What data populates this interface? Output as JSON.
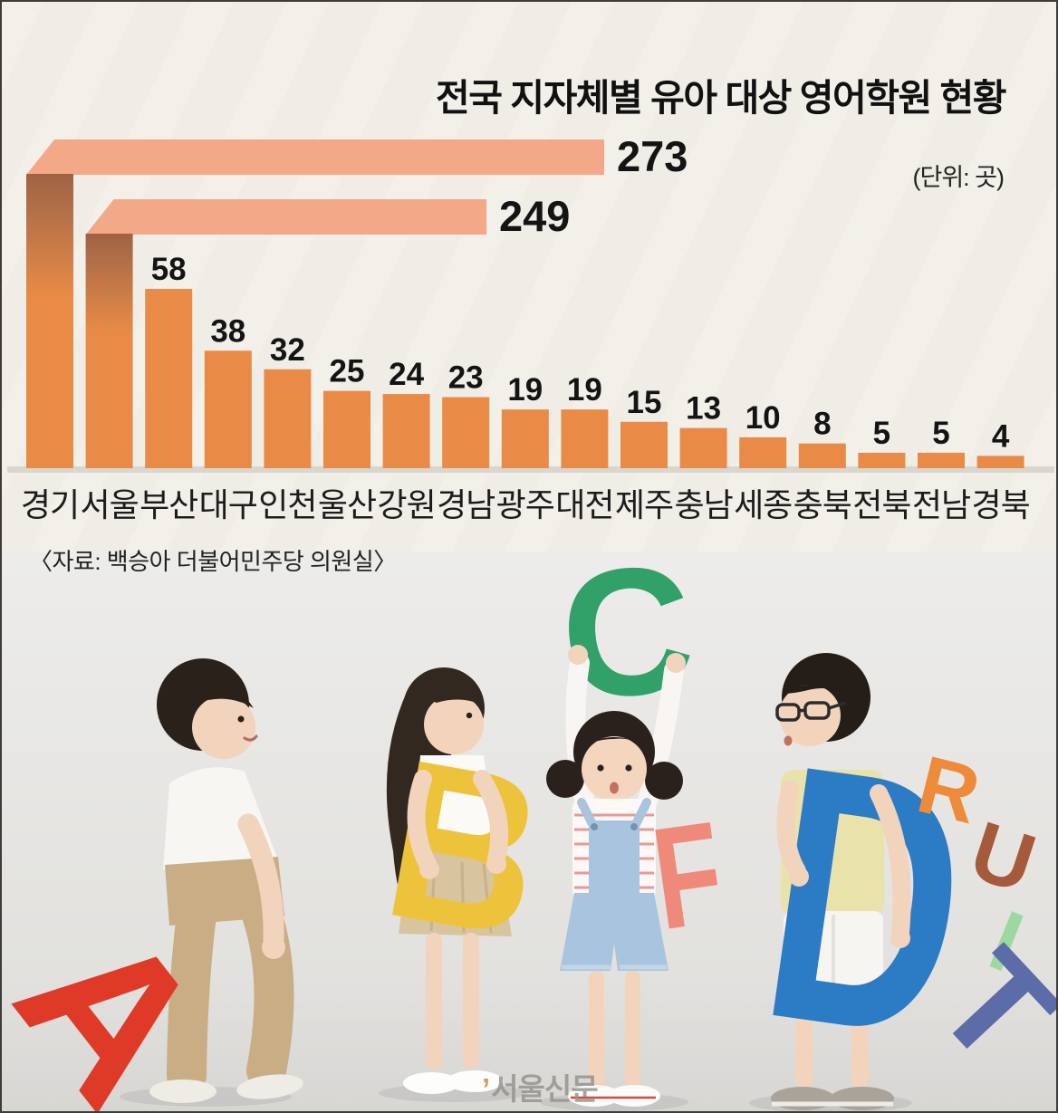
{
  "chart": {
    "title": "전국 지자체별 유아 대상 영어학원 현황",
    "unit_note": "(단위: 곳)",
    "source": "〈자료: 백승아 더불어민주당 의원실〉"
  },
  "watermark": {
    "tick": "’",
    "label": "서울신문"
  },
  "chart_data": {
    "type": "bar",
    "title": "전국 지자체별 유아 대상 영어학원 현황",
    "unit": "곳",
    "categories": [
      "경기",
      "서울",
      "부산",
      "대구",
      "인천",
      "울산",
      "강원",
      "경남",
      "광주",
      "대전",
      "제주",
      "충남",
      "세종",
      "충북",
      "전북",
      "전남",
      "경북"
    ],
    "values": [
      273,
      249,
      58,
      38,
      32,
      25,
      24,
      23,
      19,
      19,
      15,
      13,
      10,
      8,
      5,
      5,
      4
    ],
    "bar_color": "#e98b46",
    "bent_arm_color": "#f3a987",
    "bend_shadow_color": "#a8683f",
    "baseline_color": "#d9d6cf",
    "value_color": "#141414",
    "label_color": "#1c1c1c",
    "legend": "none",
    "grid": false,
    "orientation": "vertical, two tallest bars bent horizontally at top"
  },
  "photo": {
    "letters": [
      {
        "char": "A",
        "color": "#df3a28"
      },
      {
        "char": "B",
        "color": "#eec33c"
      },
      {
        "char": "C",
        "color": "#31a169"
      },
      {
        "char": "D",
        "color": "#2c7bc5"
      },
      {
        "char": "F",
        "color": "#ef8979"
      },
      {
        "char": "R",
        "color": "#ed8b3a"
      },
      {
        "char": "U",
        "color": "#a55a3c"
      },
      {
        "char": "I",
        "color": "#9cd8a0"
      },
      {
        "char": "T",
        "color": "#5c6ca8"
      }
    ]
  }
}
